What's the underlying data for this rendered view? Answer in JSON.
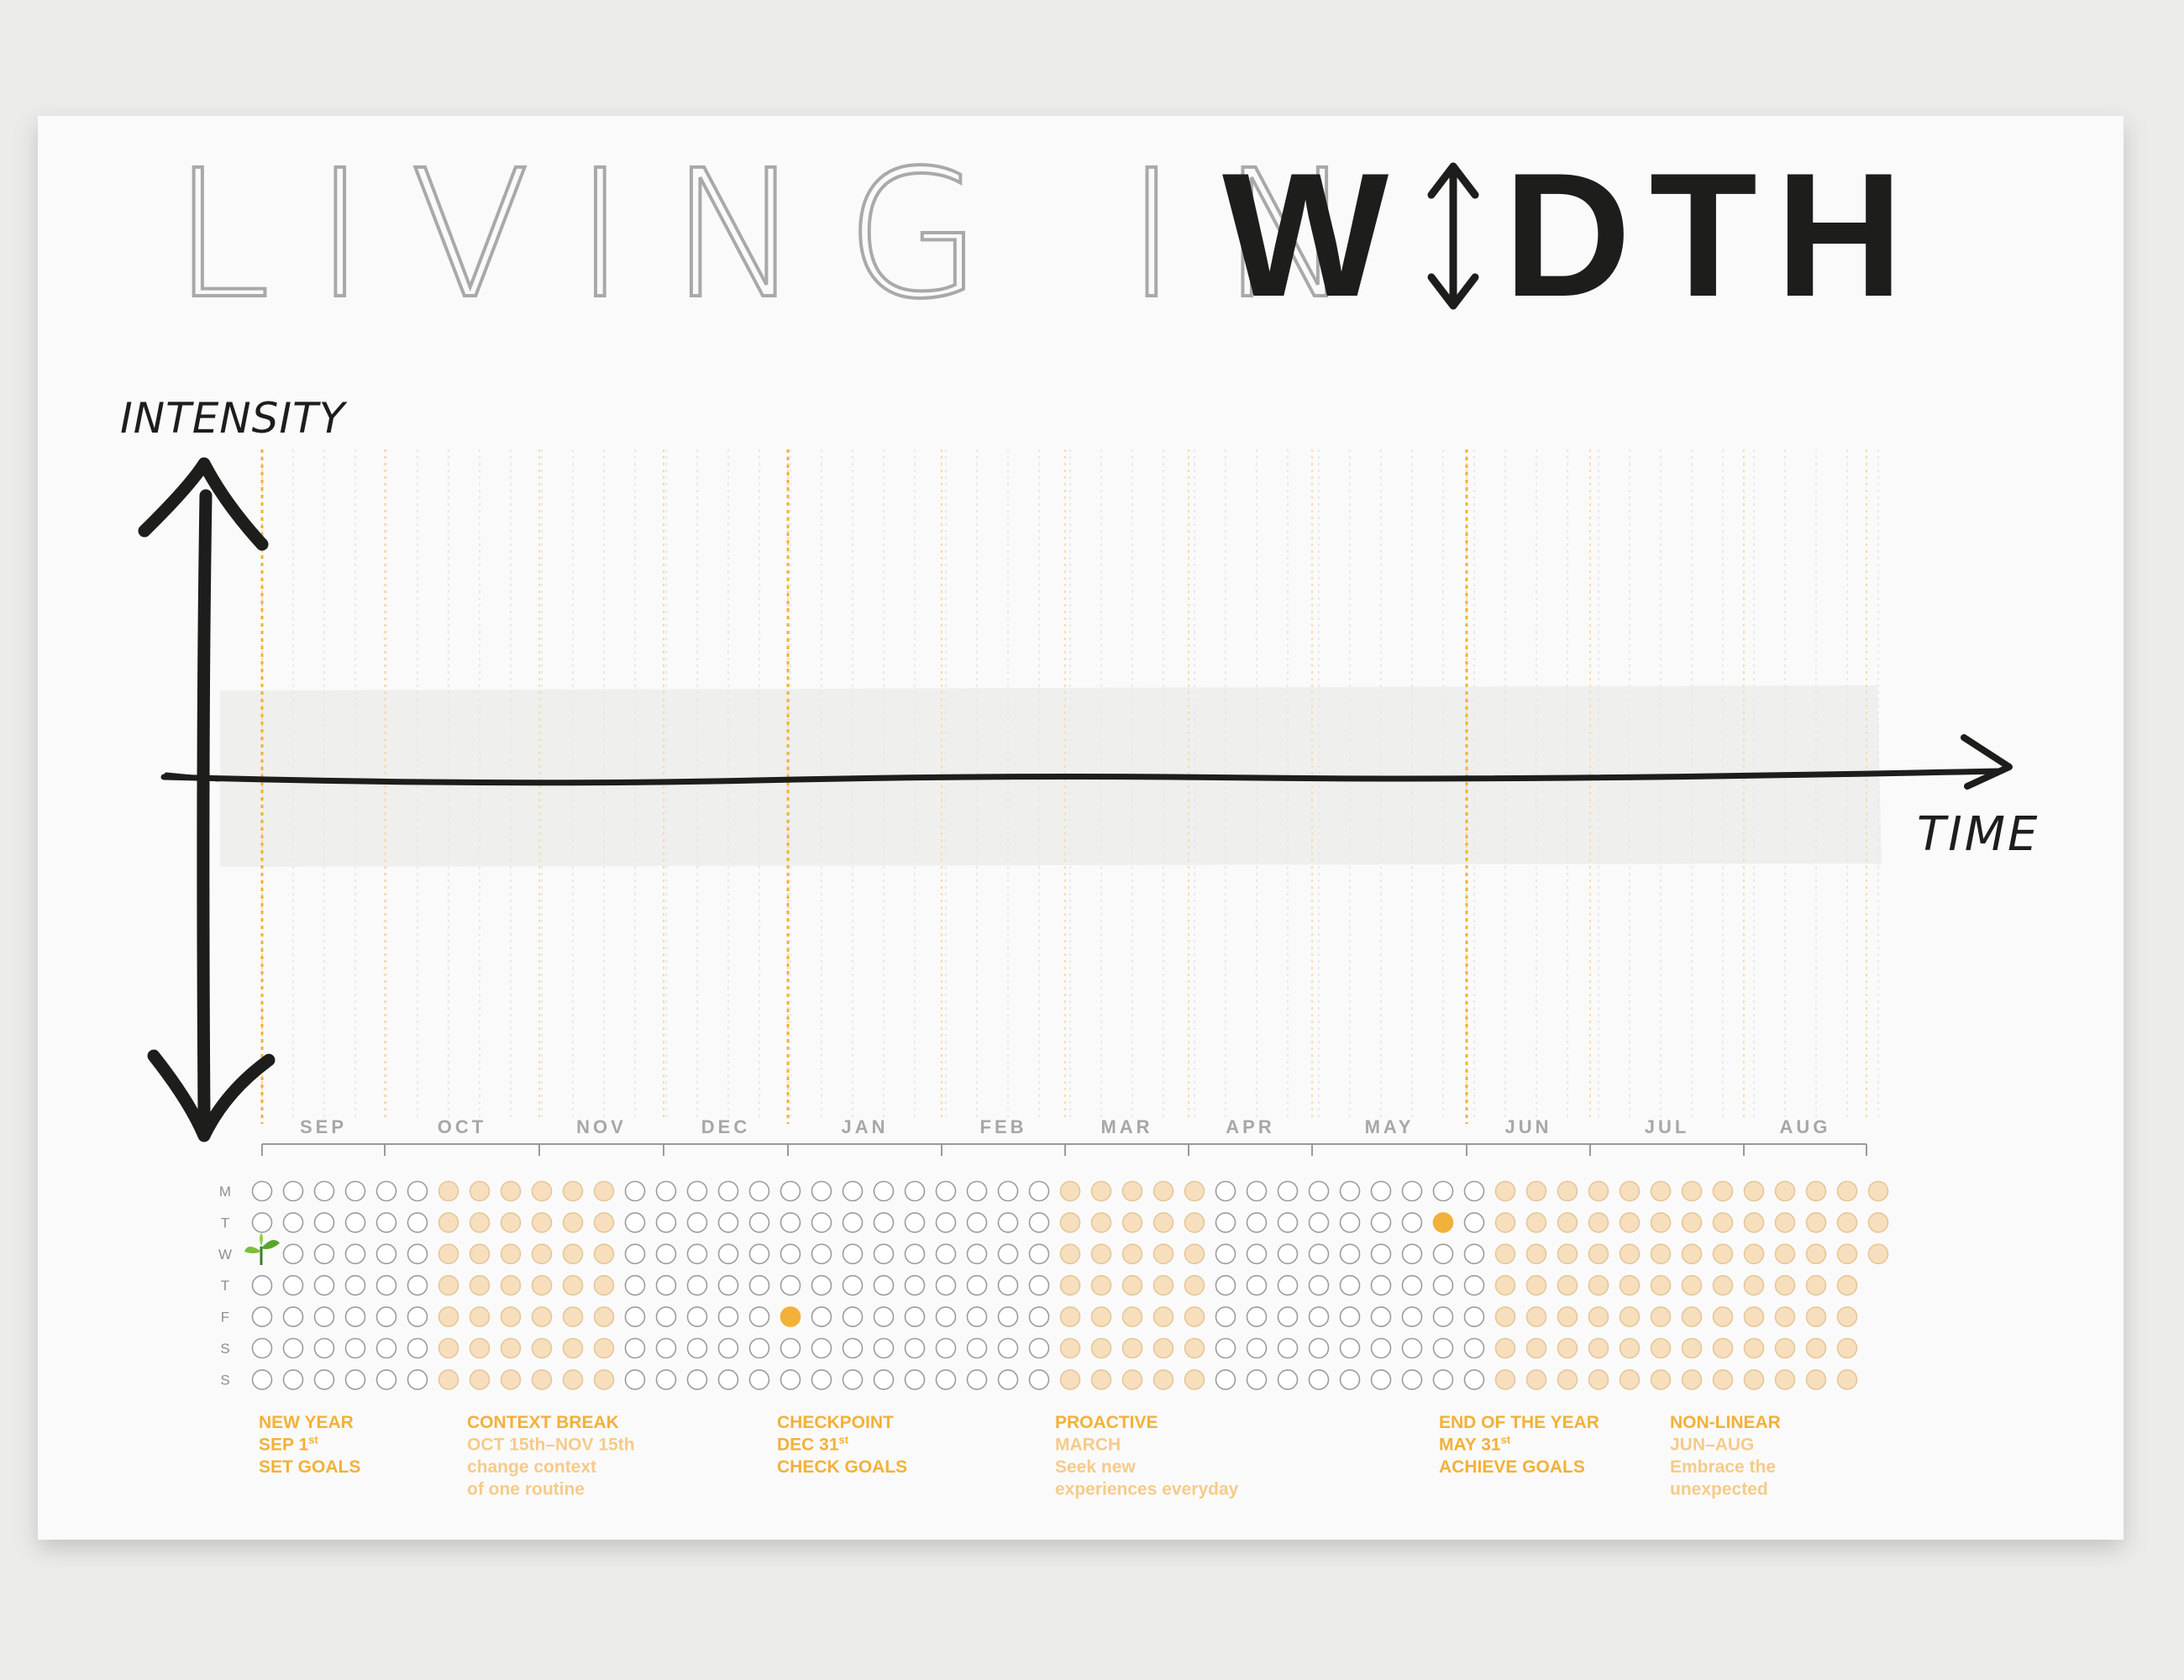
{
  "title": {
    "light": "LIVING IN",
    "bold_start": "W",
    "bold_end": "DTH"
  },
  "axes": {
    "y_label": "INTENSITY",
    "x_label": "TIME"
  },
  "months": [
    "SEP",
    "OCT",
    "NOV",
    "DEC",
    "JAN",
    "FEB",
    "MAR",
    "APR",
    "MAY",
    "JUN",
    "JUL",
    "AUG"
  ],
  "weekdays": [
    "M",
    "T",
    "W",
    "T",
    "F",
    "S",
    "S"
  ],
  "calendar": {
    "week_count": 52,
    "start_marker": {
      "week": 0,
      "day": 2,
      "icon": "sprout-icon"
    },
    "filled_week_ranges": [
      [
        6,
        11
      ],
      [
        26,
        30
      ],
      [
        40,
        52
      ]
    ],
    "milestone_dots": [
      {
        "week": 17,
        "day": 4,
        "label": "DEC 31st"
      },
      {
        "week": 38,
        "day": 1,
        "label": "MAY 31st"
      }
    ]
  },
  "colors": {
    "accent": "#f2b138",
    "accent_light": "#f7dfbd",
    "accent_faded": "#f5cb8a",
    "ink": "#1d1d1b",
    "title_light": "#a9a9a9",
    "month_label": "#a7a7a7",
    "paper": "#fbfafa",
    "background": "#ececea"
  },
  "annotations": [
    {
      "lines": [
        {
          "text": "NEW YEAR",
          "style": "strong"
        },
        {
          "text": "SEP 1",
          "sup": "st",
          "style": "strong"
        },
        {
          "text": "SET GOALS",
          "style": "strong"
        }
      ]
    },
    {
      "lines": [
        {
          "text": "CONTEXT BREAK",
          "style": "strong"
        },
        {
          "text": "OCT 15th–NOV 15th",
          "style": "faded"
        },
        {
          "text": "change context",
          "style": "faded"
        },
        {
          "text": "of one routine",
          "style": "faded"
        }
      ]
    },
    {
      "lines": [
        {
          "text": "CHECKPOINT",
          "style": "strong"
        },
        {
          "text": "DEC 31",
          "sup": "st",
          "style": "strong"
        },
        {
          "text": "CHECK GOALS",
          "style": "strong"
        }
      ]
    },
    {
      "lines": [
        {
          "text": "PROACTIVE",
          "style": "strong"
        },
        {
          "text": "MARCH",
          "style": "faded"
        },
        {
          "text": "Seek new",
          "style": "faded"
        },
        {
          "text": " experiences everyday",
          "style": "faded"
        }
      ]
    },
    {
      "lines": [
        {
          "text": "END OF THE YEAR",
          "style": "strong"
        },
        {
          "text": "MAY 31",
          "sup": "st",
          "style": "strong"
        },
        {
          "text": "ACHIEVE GOALS",
          "style": "strong"
        }
      ]
    },
    {
      "lines": [
        {
          "text": "NON-LINEAR",
          "style": "strong"
        },
        {
          "text": "JUN–AUG",
          "style": "faded"
        },
        {
          "text": "Embrace the",
          "style": "faded"
        },
        {
          "text": " unexpected",
          "style": "faded"
        }
      ]
    }
  ]
}
